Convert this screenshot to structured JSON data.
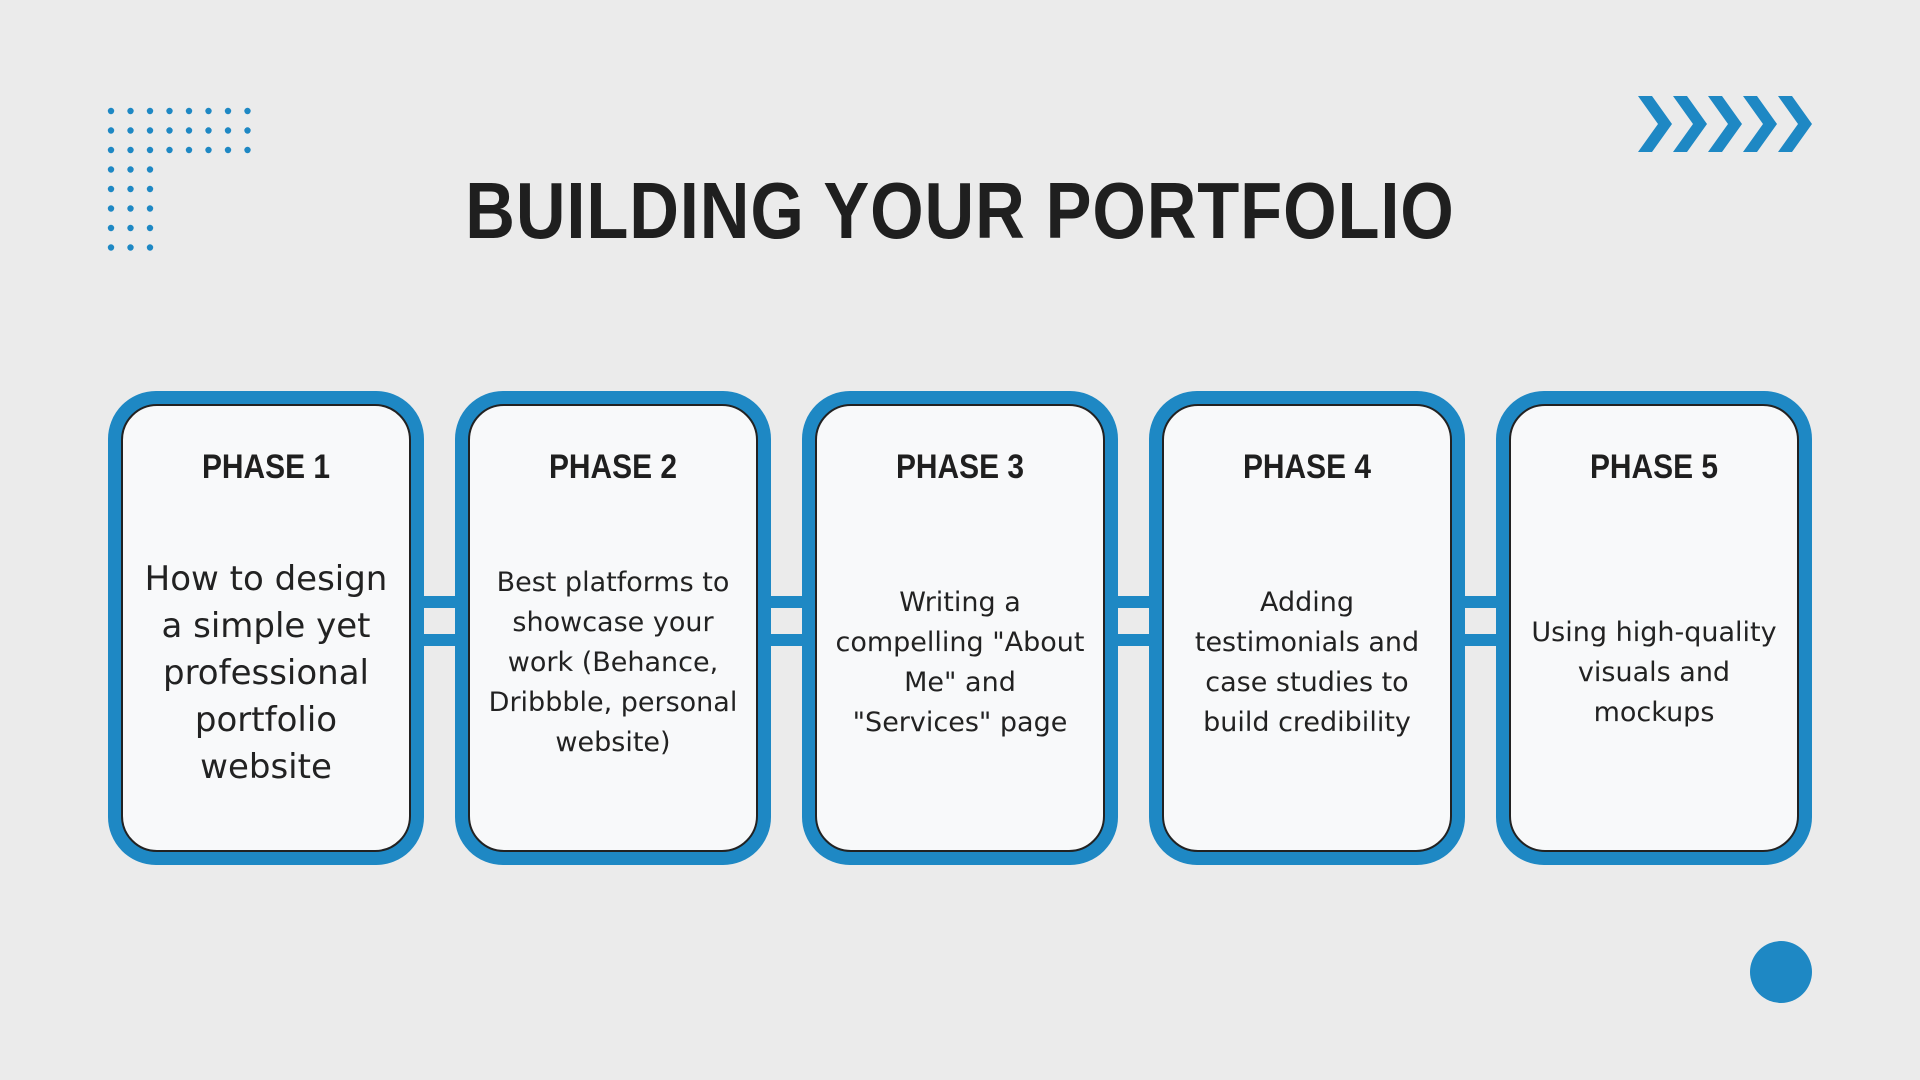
{
  "title": "BUILDING YOUR PORTFOLIO",
  "colors": {
    "background": "#ebebeb",
    "accent": "#1e88c4",
    "card_fill": "#f8f9fa",
    "text": "#1f1f1f"
  },
  "decorations": {
    "top_left": "dot-grid",
    "top_right": "chevron-arrows",
    "bottom_right": "circle"
  },
  "phases": [
    {
      "label": "PHASE 1",
      "text": "How to design a simple yet professional portfolio website"
    },
    {
      "label": "PHASE 2",
      "text": "Best platforms to showcase your work (Behance, Dribbble, personal website)"
    },
    {
      "label": "PHASE 3",
      "text": "Writing a compelling \"About Me\" and \"Services\" page"
    },
    {
      "label": "PHASE 4",
      "text": "Adding testimonials and case studies to build credibility"
    },
    {
      "label": "PHASE 5",
      "text": "Using high-quality visuals and mockups"
    }
  ]
}
